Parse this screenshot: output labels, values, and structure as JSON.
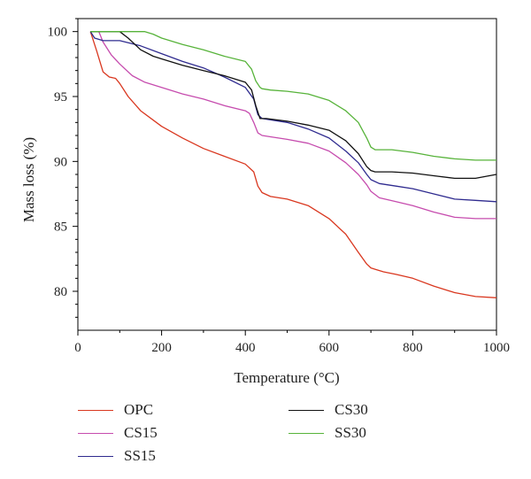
{
  "chart_data": {
    "type": "line",
    "title": "",
    "xlabel": "Temperature (°C)",
    "ylabel": "Mass loss (%)",
    "xlim": [
      0,
      1000
    ],
    "ylim": [
      77,
      101
    ],
    "xticks": [
      0,
      200,
      400,
      600,
      800,
      1000
    ],
    "yticks": [
      80,
      85,
      90,
      95,
      100
    ],
    "grid": false,
    "legend_position": "below-plot",
    "series": [
      {
        "name": "OPC",
        "color": "#d9371f",
        "x": [
          30,
          45,
          60,
          75,
          90,
          100,
          120,
          150,
          200,
          250,
          300,
          350,
          400,
          420,
          430,
          440,
          460,
          500,
          550,
          600,
          640,
          670,
          690,
          700,
          710,
          730,
          760,
          800,
          850,
          900,
          950,
          1000
        ],
        "y": [
          100,
          98.5,
          96.9,
          96.5,
          96.4,
          96.0,
          95.0,
          93.9,
          92.7,
          91.8,
          91.0,
          90.4,
          89.8,
          89.2,
          88.1,
          87.6,
          87.3,
          87.1,
          86.6,
          85.6,
          84.4,
          83.0,
          82.1,
          81.8,
          81.7,
          81.5,
          81.3,
          81.0,
          80.4,
          79.9,
          79.6,
          79.5
        ]
      },
      {
        "name": "CS15",
        "color": "#c64cae",
        "x": [
          30,
          50,
          60,
          80,
          100,
          130,
          160,
          200,
          250,
          300,
          350,
          400,
          410,
          420,
          430,
          440,
          460,
          500,
          550,
          600,
          640,
          670,
          690,
          700,
          720,
          760,
          800,
          850,
          900,
          950,
          1000
        ],
        "y": [
          100,
          100,
          99.2,
          98.2,
          97.5,
          96.6,
          96.1,
          95.7,
          95.2,
          94.8,
          94.3,
          93.9,
          93.7,
          93.0,
          92.2,
          92.0,
          91.9,
          91.7,
          91.4,
          90.8,
          89.9,
          89.0,
          88.2,
          87.7,
          87.2,
          86.9,
          86.6,
          86.1,
          85.7,
          85.6,
          85.6
        ]
      },
      {
        "name": "SS15",
        "color": "#2f2b8f",
        "x": [
          30,
          40,
          60,
          100,
          150,
          200,
          250,
          300,
          350,
          400,
          420,
          430,
          440,
          460,
          500,
          550,
          600,
          640,
          670,
          690,
          700,
          720,
          760,
          800,
          850,
          900,
          950,
          1000
        ],
        "y": [
          100,
          99.5,
          99.3,
          99.3,
          98.9,
          98.3,
          97.7,
          97.2,
          96.5,
          95.7,
          94.8,
          93.6,
          93.3,
          93.2,
          93.0,
          92.5,
          91.8,
          90.8,
          89.9,
          89.0,
          88.6,
          88.3,
          88.1,
          87.9,
          87.5,
          87.1,
          87.0,
          86.9
        ]
      },
      {
        "name": "CS30",
        "color": "#111111",
        "x": [
          30,
          100,
          120,
          150,
          180,
          200,
          250,
          300,
          350,
          400,
          415,
          425,
          435,
          450,
          500,
          550,
          600,
          640,
          670,
          690,
          700,
          710,
          750,
          800,
          850,
          900,
          950,
          1000
        ],
        "y": [
          100,
          100,
          99.5,
          98.6,
          98.1,
          97.9,
          97.4,
          97.0,
          96.6,
          96.1,
          95.5,
          94.3,
          93.3,
          93.3,
          93.1,
          92.8,
          92.4,
          91.6,
          90.6,
          89.6,
          89.3,
          89.2,
          89.2,
          89.1,
          88.9,
          88.7,
          88.7,
          89.0
        ]
      },
      {
        "name": "SS30",
        "color": "#57b33a",
        "x": [
          30,
          100,
          160,
          180,
          200,
          250,
          300,
          350,
          400,
          415,
          425,
          435,
          440,
          460,
          500,
          550,
          600,
          640,
          670,
          690,
          700,
          710,
          750,
          800,
          850,
          900,
          950,
          1000
        ],
        "y": [
          100,
          100,
          100,
          99.8,
          99.5,
          99.0,
          98.6,
          98.1,
          97.7,
          97.1,
          96.2,
          95.7,
          95.6,
          95.5,
          95.4,
          95.2,
          94.7,
          93.9,
          93.0,
          91.8,
          91.1,
          90.9,
          90.9,
          90.7,
          90.4,
          90.2,
          90.1,
          90.1
        ]
      }
    ]
  }
}
